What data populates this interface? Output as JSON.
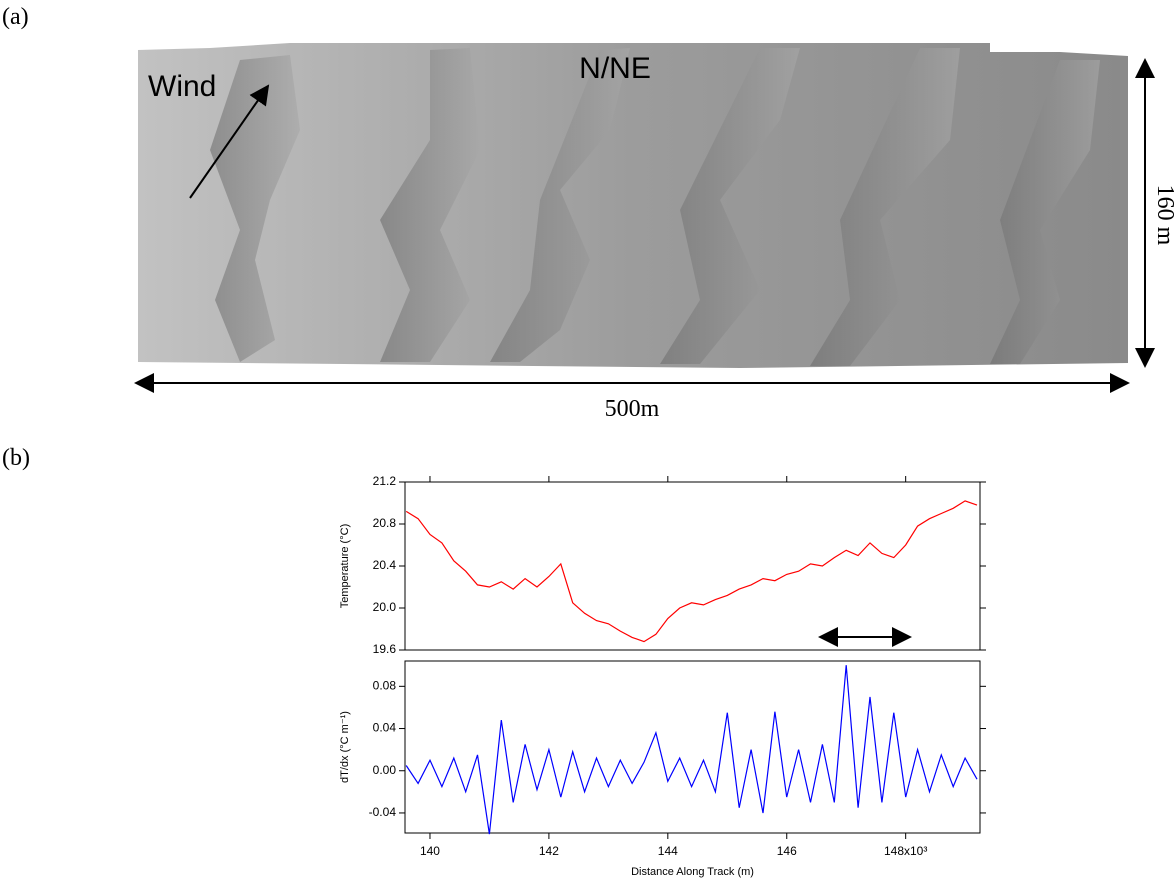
{
  "figure": {
    "panel_a": {
      "label": "(a)",
      "wind_label": "Wind",
      "direction_label": "N/NE",
      "height_label": "160 m",
      "width_label": "500m"
    },
    "panel_b": {
      "label": "(b)"
    }
  },
  "chart_data": [
    {
      "type": "line",
      "y_label": "Temperature (°C)",
      "x": [
        139600,
        139800,
        140000,
        140200,
        140400,
        140600,
        140800,
        141000,
        141200,
        141400,
        141600,
        141800,
        142000,
        142200,
        142400,
        142600,
        142800,
        143000,
        143200,
        143400,
        143600,
        143800,
        144000,
        144200,
        144400,
        144600,
        144800,
        145000,
        145200,
        145400,
        145600,
        145800,
        146000,
        146200,
        146400,
        146600,
        146800,
        147000,
        147200,
        147400,
        147600,
        147800,
        148000,
        148200,
        148400,
        148600,
        148800,
        149000,
        149200
      ],
      "values": [
        20.92,
        20.85,
        20.7,
        20.62,
        20.45,
        20.35,
        20.22,
        20.2,
        20.25,
        20.18,
        20.28,
        20.2,
        20.3,
        20.42,
        20.05,
        19.95,
        19.88,
        19.85,
        19.78,
        19.72,
        19.68,
        19.75,
        19.9,
        20.0,
        20.05,
        20.03,
        20.08,
        20.12,
        20.18,
        20.22,
        20.28,
        20.26,
        20.32,
        20.35,
        20.42,
        20.4,
        20.48,
        20.55,
        20.5,
        20.62,
        20.52,
        20.48,
        20.6,
        20.78,
        20.85,
        20.9,
        20.95,
        21.02,
        20.98
      ],
      "color": "#ff0000",
      "xlim": [
        139580,
        149250
      ],
      "ylim": [
        19.6,
        21.2
      ],
      "yticks": [
        19.6,
        {
          "value": 20,
          "label": "20.0"
        },
        20.4,
        20.8,
        21.2
      ]
    },
    {
      "type": "line",
      "x_label": "Distance Along Track (m)",
      "y_label": "dT/dx (°C m⁻¹)",
      "x": [
        139600,
        139800,
        140000,
        140200,
        140400,
        140600,
        140800,
        141000,
        141200,
        141400,
        141600,
        141800,
        142000,
        142200,
        142400,
        142600,
        142800,
        143000,
        143200,
        143400,
        143600,
        143800,
        144000,
        144200,
        144400,
        144600,
        144800,
        145000,
        145200,
        145400,
        145600,
        145800,
        146000,
        146200,
        146400,
        146600,
        146800,
        147000,
        147200,
        147400,
        147600,
        147800,
        148000,
        148200,
        148400,
        148600,
        148800,
        149000,
        149200
      ],
      "values": [
        0.005,
        -0.012,
        0.01,
        -0.015,
        0.012,
        -0.02,
        0.015,
        -0.06,
        0.048,
        -0.03,
        0.025,
        -0.018,
        0.02,
        -0.025,
        0.018,
        -0.02,
        0.012,
        -0.015,
        0.01,
        -0.012,
        0.008,
        0.036,
        -0.01,
        0.012,
        -0.015,
        0.01,
        -0.02,
        0.055,
        -0.035,
        0.02,
        -0.04,
        0.056,
        -0.025,
        0.02,
        -0.03,
        0.025,
        -0.03,
        0.1,
        -0.035,
        0.07,
        -0.03,
        0.055,
        -0.025,
        0.02,
        -0.02,
        0.015,
        -0.015,
        0.012,
        -0.008
      ],
      "color": "#0000ff",
      "xlim": [
        139580,
        149250
      ],
      "ylim": [
        -0.059,
        0.104
      ],
      "xticks": [
        {
          "value": 140000,
          "label": "140"
        },
        {
          "value": 142000,
          "label": "142"
        },
        {
          "value": 144000,
          "label": "144"
        },
        {
          "value": 146000,
          "label": "146"
        },
        {
          "value": 148000,
          "label": "148x10³"
        }
      ],
      "yticks": [
        -0.04,
        {
          "value": 0,
          "label": "0.00"
        },
        0.04,
        0.08
      ]
    }
  ]
}
